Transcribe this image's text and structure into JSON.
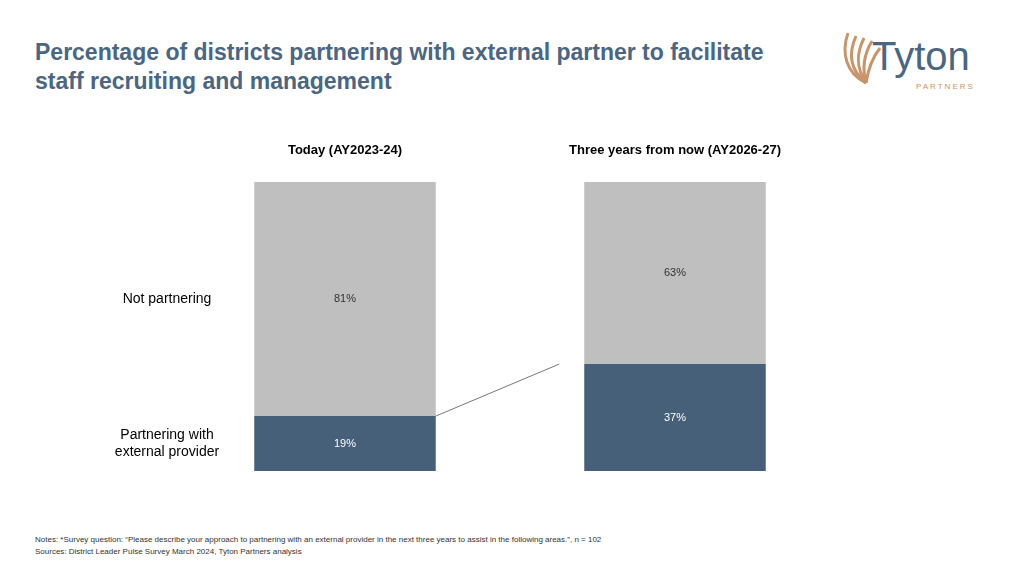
{
  "chart_data": {
    "type": "bar",
    "stacked": true,
    "title": "Percentage of districts partnering with external partner to facilitate staff recruiting and management",
    "categories": [
      "Today (AY2023-24)",
      "Three years from now (AY2026-27)"
    ],
    "series": [
      {
        "name": "Partnering with external provider",
        "color": "#466079",
        "values": [
          19,
          37
        ],
        "value_labels": [
          "19%",
          "37%"
        ]
      },
      {
        "name": "Not partnering",
        "color": "#bfbfbf",
        "values": [
          81,
          63
        ],
        "value_labels": [
          "81%",
          "63%"
        ]
      }
    ],
    "ylim": [
      0,
      100
    ],
    "grid": false,
    "data_labels": true,
    "tick_labels": "x"
  },
  "notes": "Notes: *Survey question: “Please describe your approach to partnering with an external provider in the next three years to assist in the following areas.”, n = 102",
  "sources": "Sources: District Leader Pulse Survey March 2024, Tyton Partners analysis",
  "logo": {
    "name": "Tyton",
    "tagline": "PARTNERS"
  }
}
